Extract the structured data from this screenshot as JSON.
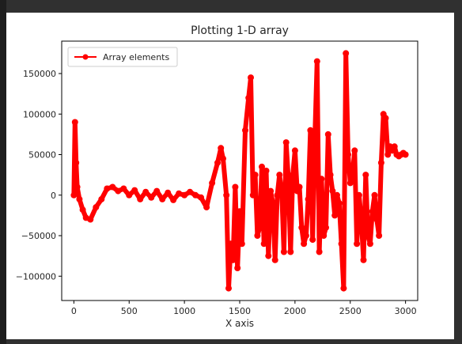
{
  "chart_data": {
    "type": "line",
    "title": "Plotting 1-D array",
    "xlabel": "X axis",
    "ylabel": "",
    "xlim": [
      -110,
      3110
    ],
    "ylim": [
      -130000,
      190000
    ],
    "xticks": [
      0,
      500,
      1000,
      1500,
      2000,
      2500,
      3000
    ],
    "yticks": [
      -100000,
      -50000,
      0,
      50000,
      100000,
      150000
    ],
    "xtick_labels": [
      "0",
      "500",
      "1000",
      "1500",
      "2000",
      "2500",
      "3000"
    ],
    "ytick_labels": [
      "−100000",
      "−50000",
      "0",
      "50000",
      "100000",
      "150000"
    ],
    "grid": false,
    "legend_position": "top-left",
    "series": [
      {
        "name": "Array elements",
        "color": "#ff0000",
        "marker": "circle",
        "x": [
          0,
          10,
          20,
          30,
          50,
          80,
          110,
          150,
          200,
          250,
          300,
          350,
          400,
          450,
          500,
          550,
          600,
          650,
          700,
          750,
          800,
          850,
          900,
          950,
          1000,
          1050,
          1100,
          1150,
          1200,
          1250,
          1300,
          1330,
          1350,
          1380,
          1400,
          1420,
          1440,
          1460,
          1480,
          1500,
          1520,
          1550,
          1580,
          1600,
          1620,
          1640,
          1660,
          1680,
          1700,
          1720,
          1740,
          1760,
          1780,
          1800,
          1820,
          1840,
          1860,
          1880,
          1900,
          1920,
          1940,
          1960,
          1980,
          2000,
          2020,
          2040,
          2060,
          2080,
          2100,
          2120,
          2140,
          2160,
          2180,
          2200,
          2220,
          2240,
          2260,
          2280,
          2300,
          2320,
          2340,
          2360,
          2380,
          2400,
          2420,
          2440,
          2460,
          2480,
          2500,
          2520,
          2540,
          2560,
          2580,
          2600,
          2620,
          2640,
          2660,
          2680,
          2700,
          2720,
          2740,
          2760,
          2780,
          2800,
          2820,
          2840,
          2860,
          2880,
          2900,
          2920,
          2940,
          2960,
          2980,
          3000
        ],
        "values": [
          0,
          90000,
          40000,
          10000,
          -5000,
          -18000,
          -28000,
          -30000,
          -15000,
          -5000,
          8000,
          10000,
          5000,
          8000,
          0,
          6000,
          -5000,
          4000,
          -3000,
          5000,
          -5000,
          3000,
          -6000,
          2000,
          0,
          4000,
          0,
          -3000,
          -15000,
          15000,
          40000,
          58000,
          45000,
          0,
          -115000,
          -60000,
          -80000,
          10000,
          -90000,
          -20000,
          -60000,
          80000,
          120000,
          145000,
          0,
          25000,
          -50000,
          -40000,
          35000,
          -60000,
          30000,
          -75000,
          5000,
          -10000,
          -80000,
          0,
          25000,
          5000,
          -70000,
          65000,
          20000,
          -70000,
          25000,
          55000,
          5000,
          10000,
          -40000,
          -60000,
          -50000,
          -5000,
          80000,
          -55000,
          70000,
          165000,
          -70000,
          20000,
          -50000,
          -40000,
          75000,
          25000,
          5000,
          -25000,
          0,
          -10000,
          -60000,
          -115000,
          175000,
          50000,
          15000,
          25000,
          55000,
          -60000,
          0,
          -30000,
          -80000,
          25000,
          -50000,
          -60000,
          -20000,
          0,
          -30000,
          -50000,
          40000,
          100000,
          95000,
          50000,
          60000,
          55000,
          60000,
          50000,
          48000,
          50000,
          52000,
          50000
        ],
        "label_in_legend": "Array elements"
      }
    ]
  }
}
